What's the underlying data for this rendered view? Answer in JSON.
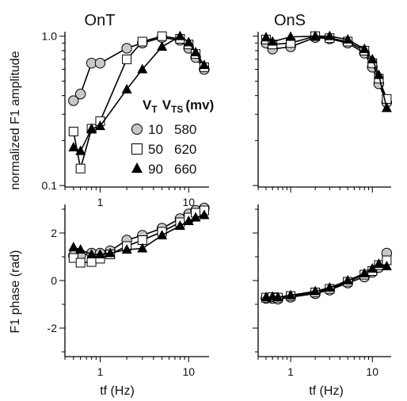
{
  "chart_data": [
    {
      "type": "line",
      "title": "OnT",
      "ylabel": "normalized F1 amplitude",
      "xlabel": "",
      "xscale": "log",
      "yscale": "log",
      "xlim": [
        0.4,
        17
      ],
      "ylim": [
        0.1,
        1.0
      ],
      "xticks": [
        "1",
        "10"
      ],
      "yticks": [
        "0.1",
        "1.0"
      ],
      "series": [
        {
          "name": "10 580",
          "marker": "circle",
          "x": [
            0.5,
            0.6,
            0.8,
            1.0,
            2.0,
            3.0,
            5.0,
            8.0,
            10.0,
            12.0,
            15.0
          ],
          "y": [
            0.37,
            0.41,
            0.66,
            0.66,
            0.83,
            0.9,
            0.98,
            0.94,
            0.83,
            0.72,
            0.6
          ]
        },
        {
          "name": "50 620",
          "marker": "square",
          "x": [
            0.5,
            0.6,
            0.8,
            1.0,
            2.0,
            3.0,
            5.0,
            8.0,
            10.0,
            12.0,
            15.0
          ],
          "y": [
            0.23,
            0.13,
            0.24,
            0.27,
            0.7,
            0.92,
            1.0,
            0.96,
            0.88,
            0.76,
            0.62
          ]
        },
        {
          "name": "90 660",
          "marker": "triangle",
          "x": [
            0.5,
            0.6,
            0.8,
            1.0,
            2.0,
            3.0,
            5.0,
            8.0,
            10.0,
            12.0,
            15.0
          ],
          "y": [
            0.18,
            0.17,
            0.24,
            0.25,
            0.44,
            0.6,
            0.85,
            1.0,
            0.91,
            0.78,
            0.64
          ]
        }
      ],
      "legend": {
        "header_v": "V",
        "header_v_sub": "T",
        "header_vts": "V",
        "header_vts_sub": "TS",
        "header_unit": "(mv)",
        "rows": [
          {
            "vt": "10",
            "vts": "580"
          },
          {
            "vt": "50",
            "vts": "620"
          },
          {
            "vt": "90",
            "vts": "660"
          }
        ]
      }
    },
    {
      "type": "line",
      "title": "OnS",
      "ylabel": "",
      "xlabel": "",
      "xscale": "log",
      "yscale": "log",
      "xlim": [
        0.4,
        17
      ],
      "ylim": [
        0.1,
        1.0
      ],
      "series": [
        {
          "name": "10 580",
          "marker": "circle",
          "x": [
            0.5,
            0.6,
            1.0,
            2.0,
            3.0,
            5.0,
            8.0,
            10.0,
            12.0,
            15.0
          ],
          "y": [
            0.9,
            0.82,
            0.85,
            0.98,
            0.96,
            0.9,
            0.77,
            0.62,
            0.48,
            0.36
          ]
        },
        {
          "name": "50 620",
          "marker": "square",
          "x": [
            0.5,
            0.6,
            1.0,
            2.0,
            3.0,
            5.0,
            8.0,
            10.0,
            12.0,
            15.0
          ],
          "y": [
            0.95,
            0.88,
            0.9,
            1.0,
            0.97,
            0.92,
            0.8,
            0.66,
            0.52,
            0.38
          ]
        },
        {
          "name": "90 660",
          "marker": "triangle",
          "x": [
            0.5,
            0.6,
            1.0,
            2.0,
            3.0,
            5.0,
            8.0,
            10.0,
            12.0,
            15.0
          ],
          "y": [
            0.98,
            0.92,
            0.99,
            1.0,
            1.0,
            0.95,
            0.82,
            0.7,
            0.55,
            0.33
          ]
        }
      ]
    },
    {
      "type": "line",
      "title": "",
      "ylabel": "F1 phase (rad)",
      "xlabel": "tf (Hz)",
      "xscale": "log",
      "yscale": "linear",
      "xlim": [
        0.4,
        17
      ],
      "ylim": [
        -3.2,
        3.2
      ],
      "xticks": [
        "1",
        "10"
      ],
      "yticks": [
        "2",
        "0",
        "-2"
      ],
      "series": [
        {
          "name": "10 580",
          "marker": "circle",
          "x": [
            0.5,
            0.6,
            0.8,
            1.0,
            1.3,
            2.0,
            3.0,
            5.0,
            8.0,
            10.0,
            12.0,
            15.0
          ],
          "y": [
            1.05,
            1.05,
            1.15,
            1.15,
            1.25,
            1.7,
            1.9,
            2.2,
            2.6,
            2.8,
            2.95,
            3.05
          ]
        },
        {
          "name": "50 620",
          "marker": "square",
          "x": [
            0.5,
            0.6,
            0.8,
            1.0,
            1.3,
            2.0,
            3.0,
            5.0,
            8.0,
            10.0,
            12.0,
            15.0
          ],
          "y": [
            0.95,
            0.75,
            0.78,
            0.92,
            1.1,
            1.45,
            1.7,
            2.05,
            2.45,
            2.65,
            2.85,
            2.95
          ]
        },
        {
          "name": "90 660",
          "marker": "triangle",
          "x": [
            0.5,
            0.6,
            0.8,
            1.0,
            1.3,
            2.0,
            3.0,
            5.0,
            8.0,
            10.0,
            12.0,
            15.0
          ],
          "y": [
            1.4,
            1.3,
            1.1,
            1.1,
            1.15,
            1.3,
            1.35,
            1.9,
            2.3,
            2.5,
            2.65,
            2.75
          ]
        }
      ]
    },
    {
      "type": "line",
      "title": "",
      "ylabel": "",
      "xlabel": "tf (Hz)",
      "xscale": "log",
      "yscale": "linear",
      "xlim": [
        0.4,
        17
      ],
      "ylim": [
        -3.2,
        3.2
      ],
      "xticks": [
        "1",
        "10"
      ],
      "series": [
        {
          "name": "10 580",
          "marker": "circle",
          "x": [
            0.5,
            0.6,
            0.7,
            1.0,
            2.0,
            3.0,
            5.0,
            8.0,
            10.0,
            12.0,
            15.0
          ],
          "y": [
            -0.75,
            -0.75,
            -0.78,
            -0.7,
            -0.55,
            -0.4,
            -0.1,
            0.15,
            0.35,
            0.55,
            1.15
          ]
        },
        {
          "name": "50 620",
          "marker": "square",
          "x": [
            0.5,
            0.6,
            0.7,
            1.0,
            2.0,
            3.0,
            5.0,
            8.0,
            10.0,
            12.0,
            15.0
          ],
          "y": [
            -0.72,
            -0.7,
            -0.72,
            -0.65,
            -0.5,
            -0.35,
            -0.05,
            0.25,
            0.4,
            0.65,
            0.85
          ]
        },
        {
          "name": "90 660",
          "marker": "triangle",
          "x": [
            0.5,
            0.6,
            0.7,
            1.0,
            2.0,
            3.0,
            5.0,
            8.0,
            10.0,
            12.0,
            15.0
          ],
          "y": [
            -0.7,
            -0.68,
            -0.7,
            -0.62,
            -0.45,
            -0.3,
            0.0,
            0.3,
            0.5,
            0.7,
            0.6
          ]
        }
      ]
    }
  ],
  "styles": {
    "circle_fill": "#c8c8c8",
    "square_fill": "#ffffff",
    "triangle_fill": "#000000",
    "line_color": "#000000"
  }
}
